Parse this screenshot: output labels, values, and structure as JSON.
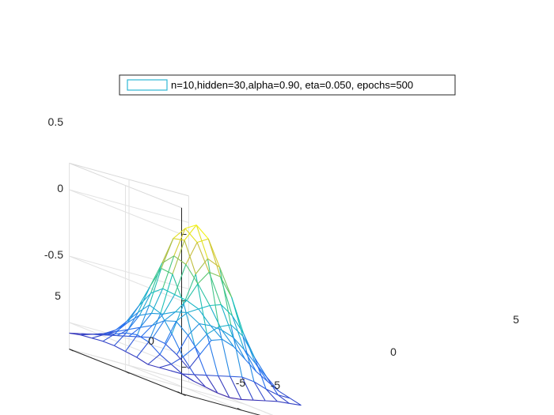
{
  "chart_data": {
    "type": "surface-mesh-3d",
    "legend": {
      "entries": [
        "n=10,hidden=30,alpha=0.90, eta=0.050, epochs=500"
      ],
      "swatch_color": "#2fb8d6",
      "placement": "top-center"
    },
    "x_ticks": [
      "-5",
      "0",
      "5"
    ],
    "y_ticks": [
      "-5",
      "0",
      "5"
    ],
    "z_ticks": [
      "-0.5",
      "0",
      "0.5"
    ],
    "xlim": [
      -5,
      5
    ],
    "ylim": [
      -5,
      5
    ],
    "zlim": [
      -0.7,
      0.7
    ],
    "grid": true,
    "colormap": "parula",
    "x": [
      -5,
      -4,
      -3,
      -2,
      -1,
      0,
      1,
      2,
      3,
      4,
      5
    ],
    "y": [
      -5,
      -4,
      -3,
      -2,
      -1,
      0,
      1,
      2,
      3,
      4,
      5
    ],
    "z": [
      [
        -0.55,
        -0.58,
        -0.6,
        -0.62,
        -0.63,
        -0.62,
        -0.6,
        -0.58,
        -0.56,
        -0.55,
        -0.54
      ],
      [
        -0.56,
        -0.56,
        -0.54,
        -0.52,
        -0.5,
        -0.48,
        -0.46,
        -0.47,
        -0.5,
        -0.52,
        -0.52
      ],
      [
        -0.57,
        -0.52,
        -0.44,
        -0.34,
        -0.22,
        -0.14,
        -0.1,
        -0.16,
        -0.3,
        -0.42,
        -0.5
      ],
      [
        -0.58,
        -0.48,
        -0.3,
        -0.05,
        0.2,
        0.34,
        0.3,
        0.1,
        -0.15,
        -0.35,
        -0.46
      ],
      [
        -0.56,
        -0.42,
        -0.18,
        0.14,
        0.42,
        0.56,
        0.48,
        0.22,
        -0.05,
        -0.28,
        -0.42
      ],
      [
        -0.55,
        -0.4,
        -0.15,
        0.15,
        0.4,
        0.5,
        0.42,
        0.22,
        0.0,
        -0.22,
        -0.36
      ],
      [
        -0.54,
        -0.42,
        -0.24,
        -0.02,
        0.18,
        0.26,
        0.22,
        0.1,
        -0.04,
        -0.2,
        -0.3
      ],
      [
        -0.54,
        -0.46,
        -0.34,
        -0.2,
        -0.08,
        -0.02,
        -0.04,
        -0.06,
        -0.1,
        -0.2,
        -0.28
      ],
      [
        -0.55,
        -0.5,
        -0.44,
        -0.36,
        -0.28,
        -0.24,
        -0.22,
        -0.18,
        -0.16,
        -0.22,
        -0.32
      ],
      [
        -0.56,
        -0.53,
        -0.5,
        -0.46,
        -0.42,
        -0.38,
        -0.34,
        -0.28,
        -0.26,
        -0.34,
        -0.46
      ],
      [
        -0.58,
        -0.56,
        -0.54,
        -0.52,
        -0.5,
        -0.48,
        -0.46,
        -0.44,
        -0.46,
        -0.52,
        -0.6
      ]
    ]
  }
}
